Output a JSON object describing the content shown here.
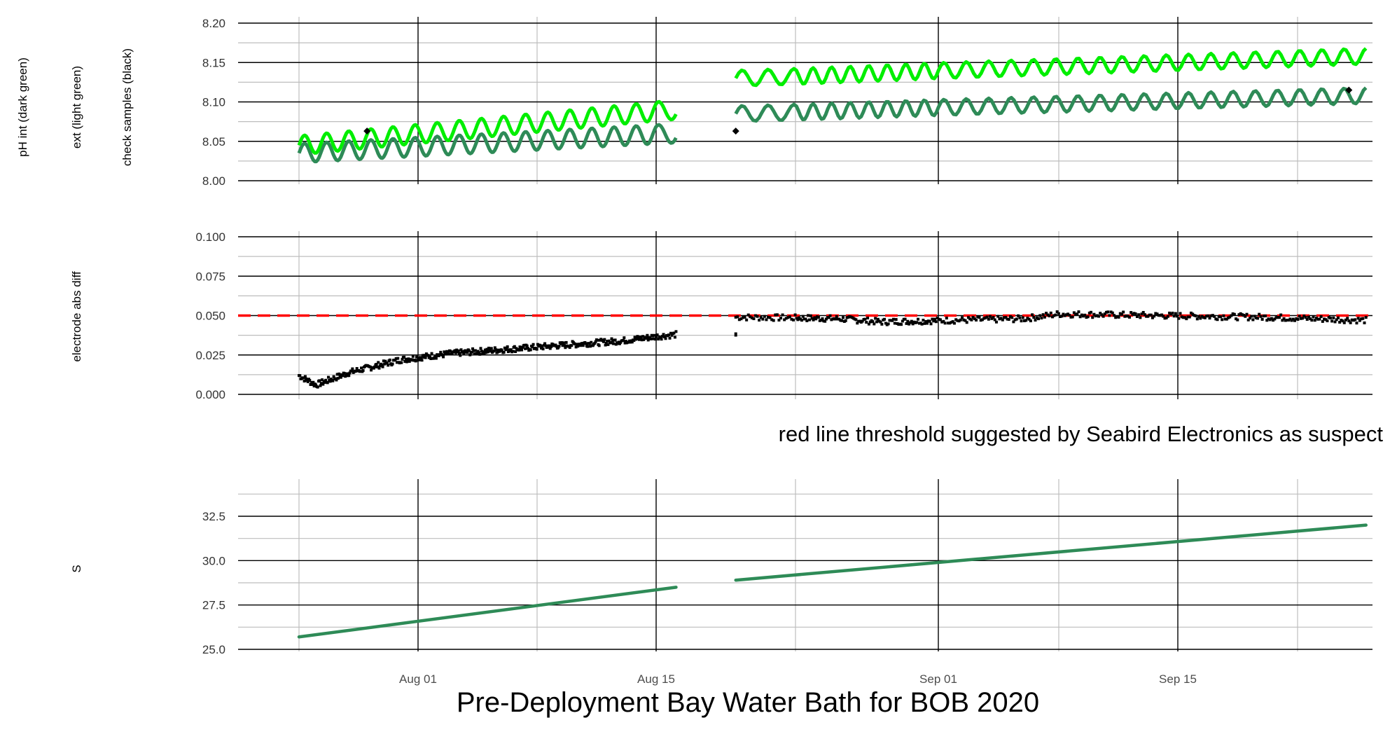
{
  "chart_data": [
    {
      "type": "line",
      "ylabels": [
        "pH int (dark green)",
        "ext (light green)",
        "check samples (black)"
      ],
      "x_ticks": [
        "Aug 01",
        "Aug 15",
        "Sep 01",
        "Sep 15"
      ],
      "y_ticks": [
        "8.00",
        "8.05",
        "8.10",
        "8.15",
        "8.20"
      ],
      "ylim": [
        8.0,
        8.2
      ],
      "grid": true,
      "colors": {
        "int": "#2e8b57",
        "ext": "#00ee00",
        "check": "#000000"
      },
      "series": [
        {
          "key": "int",
          "segments": [
            {
              "start": "2020-07-25",
              "end": "2020-08-16",
              "base_start": 8.035,
              "base_end": 8.06,
              "amplitude": 0.012
            },
            {
              "start": "2020-08-19",
              "end": "2020-09-26",
              "base_start": 8.085,
              "base_end": 8.108,
              "amplitude": 0.01
            }
          ]
        },
        {
          "key": "ext",
          "segments": [
            {
              "start": "2020-07-25",
              "end": "2020-08-16",
              "base_start": 8.045,
              "base_end": 8.09,
              "amplitude": 0.012
            },
            {
              "start": "2020-08-19",
              "end": "2020-09-26",
              "base_start": 8.13,
              "base_end": 8.158,
              "amplitude": 0.01
            }
          ]
        }
      ],
      "check_samples": [
        {
          "date": "2020-07-29",
          "value": 8.063
        },
        {
          "date": "2020-08-19",
          "value": 8.063
        },
        {
          "date": "2020-09-25",
          "value": 8.115
        }
      ]
    },
    {
      "type": "scatter",
      "ylabel": "electrode abs diff",
      "x_ticks": [
        "Aug 01",
        "Aug 15",
        "Sep 01",
        "Sep 15"
      ],
      "y_ticks": [
        "0.000",
        "0.025",
        "0.050",
        "0.075",
        "0.100"
      ],
      "ylim": [
        0.0,
        0.1
      ],
      "threshold": 0.05,
      "threshold_color": "#ff0000",
      "color": "#000000",
      "segments": [
        {
          "start": "2020-07-25",
          "end": "2020-08-16",
          "points": [
            [
              "2020-07-25",
              0.012
            ],
            [
              "2020-07-26",
              0.006
            ],
            [
              "2020-07-28",
              0.014
            ],
            [
              "2020-07-31",
              0.022
            ],
            [
              "2020-08-03",
              0.026
            ],
            [
              "2020-08-08",
              0.03
            ],
            [
              "2020-08-13",
              0.034
            ],
            [
              "2020-08-16",
              0.038
            ]
          ]
        },
        {
          "start": "2020-08-19",
          "end": "2020-09-26",
          "points": [
            [
              "2020-08-19",
              0.049
            ],
            [
              "2020-08-25",
              0.048
            ],
            [
              "2020-08-28",
              0.046
            ],
            [
              "2020-09-02",
              0.047
            ],
            [
              "2020-09-06",
              0.048
            ],
            [
              "2020-09-08",
              0.051
            ],
            [
              "2020-09-14",
              0.05
            ],
            [
              "2020-09-20",
              0.049
            ],
            [
              "2020-09-26",
              0.047
            ]
          ]
        }
      ],
      "outliers": [
        [
          "2020-08-19",
          0.038
        ]
      ],
      "caption": "red line threshold suggested by Seabird Electronics as suspect"
    },
    {
      "type": "line",
      "ylabel": "S",
      "x_ticks": [
        "Aug 01",
        "Aug 15",
        "Sep 01",
        "Sep 15"
      ],
      "y_ticks": [
        "25.0",
        "27.5",
        "30.0",
        "32.5"
      ],
      "ylim": [
        25.0,
        34.5
      ],
      "color": "#2e8b57",
      "segments": [
        {
          "start": "2020-07-25",
          "end": "2020-08-16",
          "values": [
            25.7,
            28.5
          ]
        },
        {
          "start": "2020-08-19",
          "end": "2020-09-26",
          "values": [
            28.9,
            32.0
          ]
        }
      ]
    }
  ],
  "xlabel": "Pre-Deployment Bay Water Bath for BOB 2020"
}
